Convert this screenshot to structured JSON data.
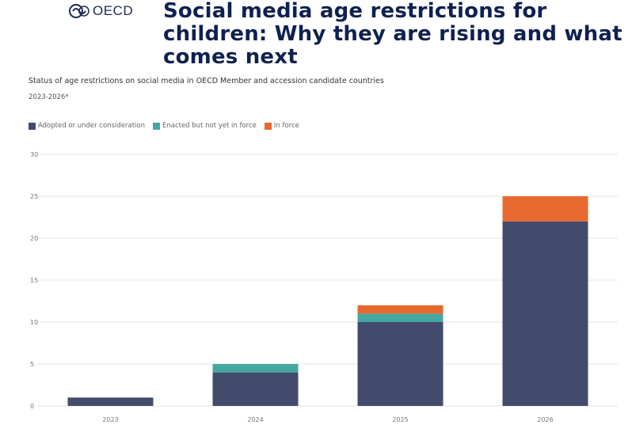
{
  "header": {
    "logo_text": "OECD",
    "title": "Social media age restrictions for children: Why they are rising and what comes next"
  },
  "colors": {
    "series_1": "#434b6d",
    "series_2": "#45a8a0",
    "series_3": "#e8692f",
    "title": "#0f2150",
    "grid": "#e3e3e3"
  },
  "chart_data": {
    "type": "bar",
    "stacked": true,
    "title": "Status of age restrictions on social media in OECD Member and accession candidate countries",
    "subtitle": "2023-2026*",
    "xlabel": "",
    "ylabel": "",
    "categories": [
      "2023",
      "2024",
      "2025",
      "2026"
    ],
    "series": [
      {
        "name": "Adopted or under consideration",
        "values": [
          1,
          4,
          10,
          22
        ]
      },
      {
        "name": "Enacted but not yet in force",
        "values": [
          0,
          1,
          1,
          0
        ]
      },
      {
        "name": "In force",
        "values": [
          0,
          0,
          1,
          3
        ]
      }
    ],
    "ylim": [
      0,
      30
    ],
    "yticks": [
      0,
      5,
      10,
      15,
      20,
      25,
      30
    ],
    "grid": true,
    "legend_position": "top-left"
  }
}
